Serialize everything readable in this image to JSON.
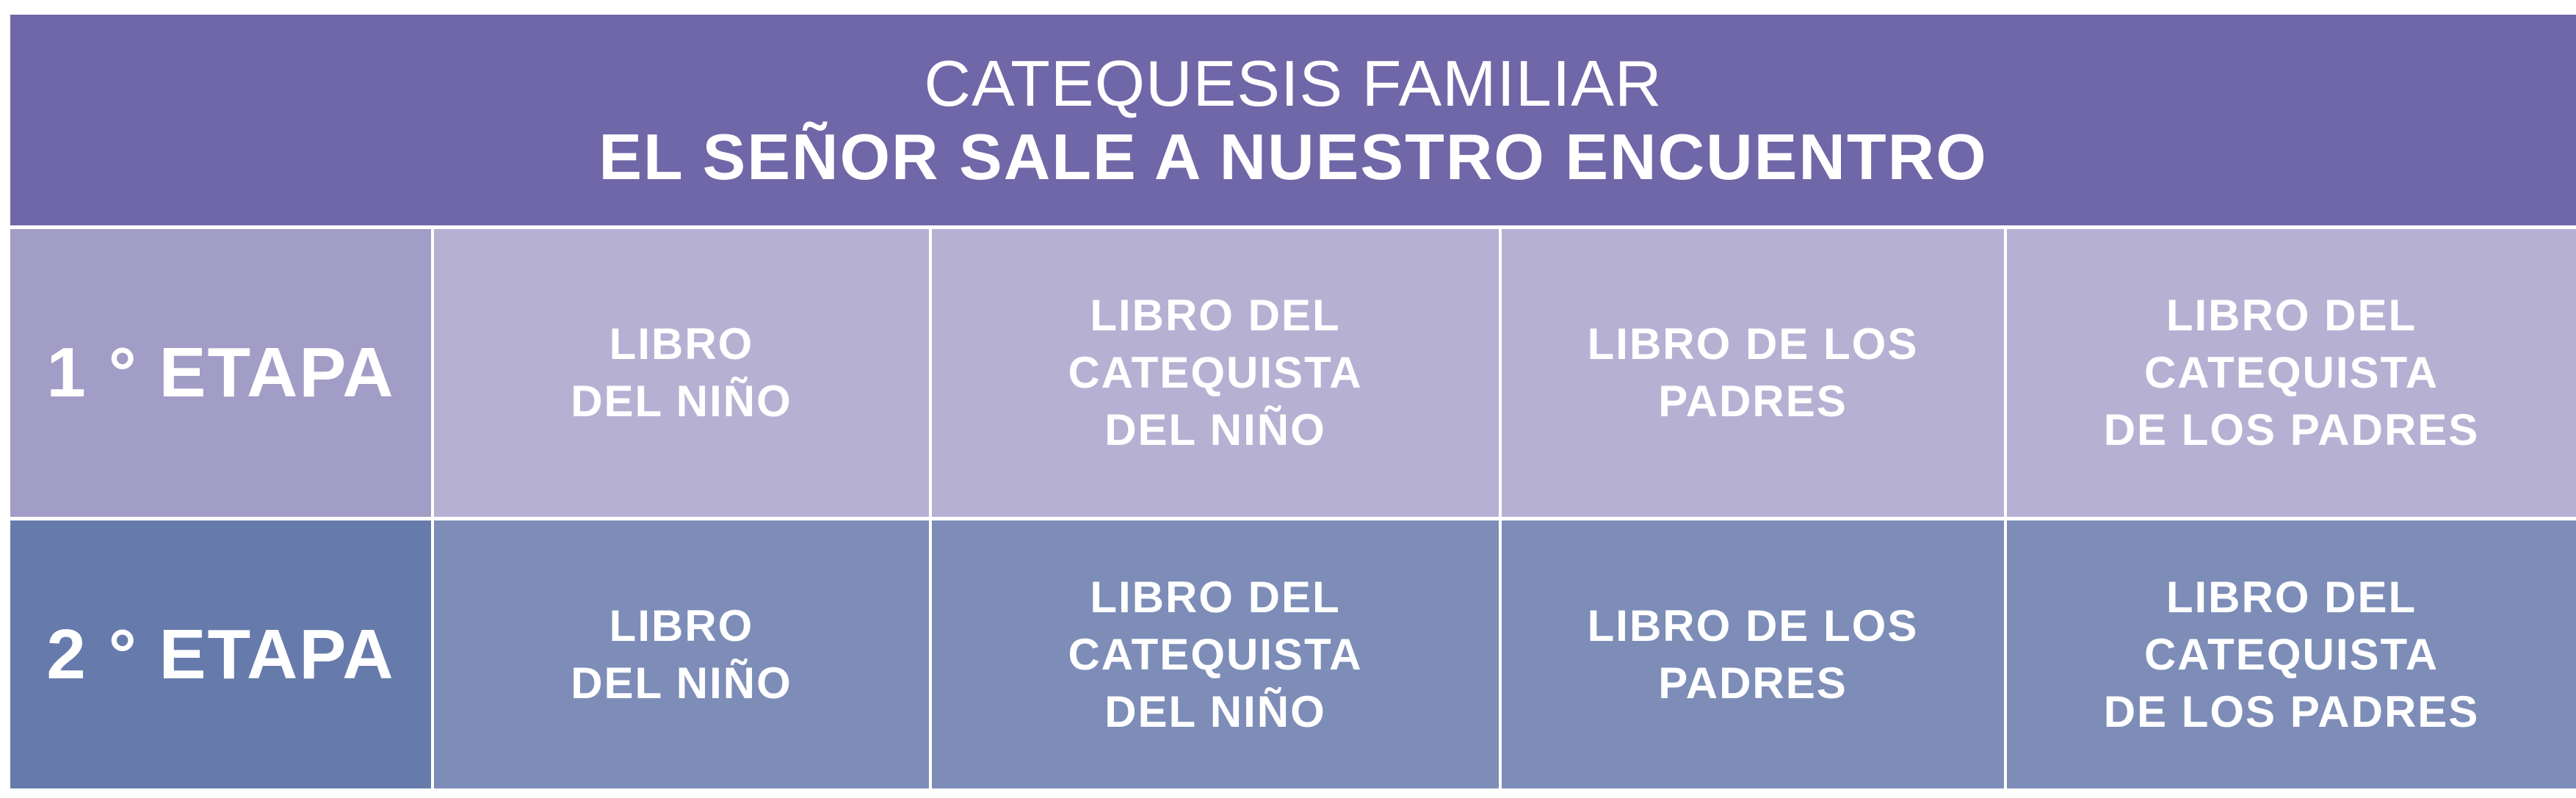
{
  "header": {
    "subtitle": "CATEQUESIS FAMILIAR",
    "title": "EL SEÑOR SALE A NUESTRO ENCUENTRO"
  },
  "colors": {
    "header": "#7067a8",
    "stage1_label": "#a29dc6",
    "stage1_cells": "#b6b1d3",
    "stage2_label": "#667bab",
    "stage2_cells": "#7d8db8"
  },
  "rows": [
    {
      "stage": "1 ° ETAPA",
      "books": [
        [
          "LIBRO",
          "DEL NIÑO"
        ],
        [
          "LIBRO DEL",
          "CATEQUISTA",
          "DEL NIÑO"
        ],
        [
          "LIBRO DE LOS",
          "PADRES"
        ],
        [
          "LIBRO DEL",
          "CATEQUISTA",
          "DE LOS PADRES"
        ]
      ]
    },
    {
      "stage": "2 ° ETAPA",
      "books": [
        [
          "LIBRO",
          "DEL NIÑO"
        ],
        [
          "LIBRO DEL",
          "CATEQUISTA",
          "DEL NIÑO"
        ],
        [
          "LIBRO DE LOS",
          "PADRES"
        ],
        [
          "LIBRO DEL",
          "CATEQUISTA",
          "DE LOS PADRES"
        ]
      ]
    }
  ]
}
